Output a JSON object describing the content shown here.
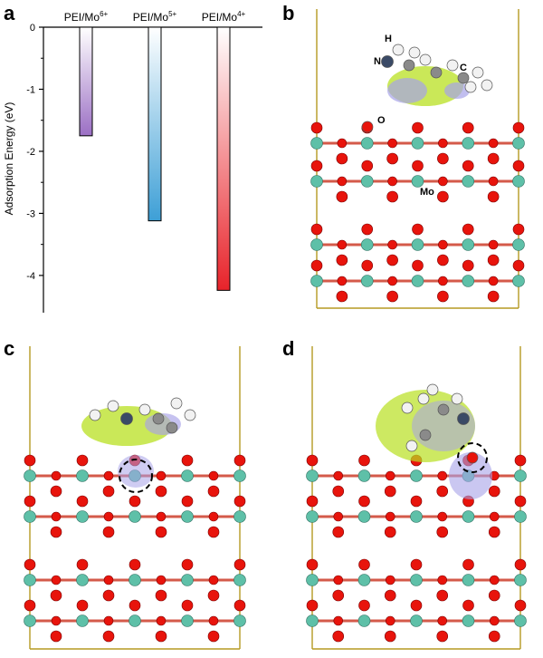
{
  "panels": {
    "a": "a",
    "b": "b",
    "c": "c",
    "d": "d"
  },
  "structure_labels": {
    "H": "H",
    "N": "N",
    "C": "C",
    "O": "O",
    "Mo": "Mo"
  },
  "colors": {
    "mo6_bar": "#9b6fc4",
    "mo5_bar": "#3d9fd6",
    "mo4_bar": "#e8232a",
    "axis": "#000000",
    "cell_edge": "#b59a22",
    "oxygen": "#e8140c",
    "molybdenum": "#5ec0a8",
    "hydrogen": "#f2f2f2",
    "nitrogen": "#3a4a66",
    "carbon": "#8a8a8a",
    "charge_gain": "#b8e020",
    "charge_loss": "#a7a2e8"
  },
  "chart_data": {
    "type": "bar",
    "categories": [
      "PEI/Mo6+",
      "PEI/Mo5+",
      "PEI/Mo4+"
    ],
    "category_labels": [
      {
        "base": "PEI/Mo",
        "sup": "6+"
      },
      {
        "base": "PEI/Mo",
        "sup": "5+"
      },
      {
        "base": "PEI/Mo",
        "sup": "4+"
      }
    ],
    "values": [
      -1.75,
      -3.12,
      -4.24
    ],
    "ylabel": "Adsorption Energy (eV)",
    "xlabel": "",
    "ylim": [
      -4.6,
      0
    ],
    "yticks": [
      0,
      -1,
      -2,
      -3,
      -4
    ],
    "ytick_labels": [
      "0",
      "-1",
      "-2",
      "-3",
      "-4"
    ],
    "grid": false,
    "bar_colors": [
      "#9b6fc4",
      "#3d9fd6",
      "#e8232a"
    ]
  }
}
